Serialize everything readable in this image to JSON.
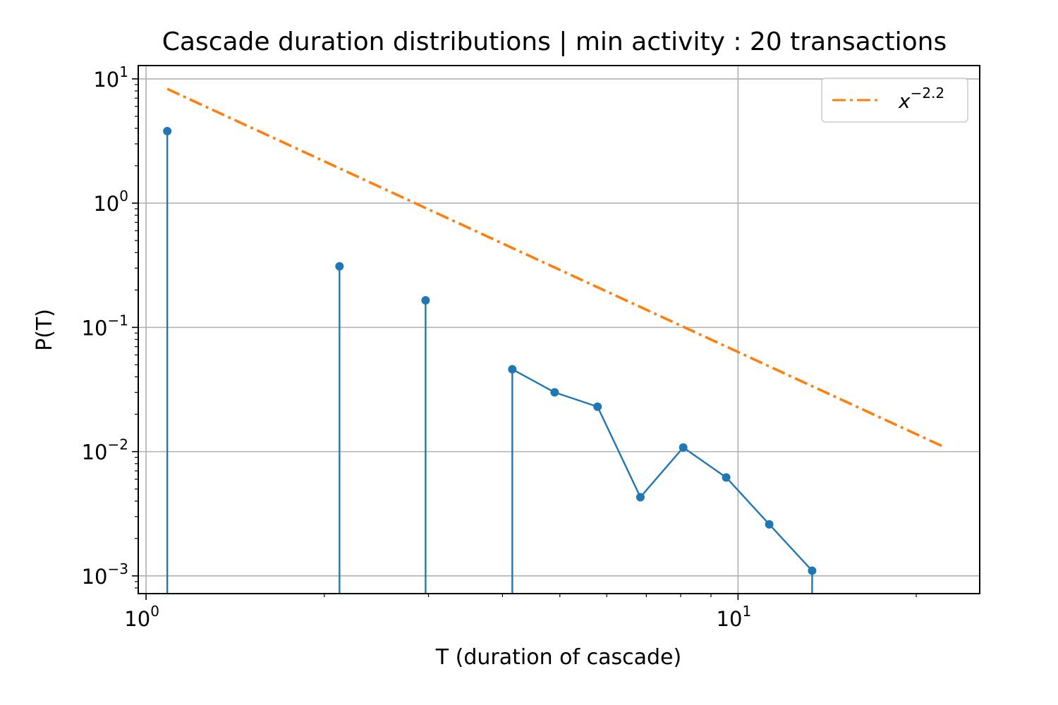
{
  "chart_data": {
    "type": "line",
    "title": "Cascade duration distributions | min activity : 20 transactions",
    "xlabel": "T (duration of cascade)",
    "ylabel": "P(T)",
    "xscale": "log",
    "yscale": "log",
    "xlim": [
      0.97,
      25.6
    ],
    "ylim": [
      0.00072,
      12.8
    ],
    "grid": true,
    "legend_position": "top-right",
    "x_ticks": [
      {
        "value": 1,
        "base": "10",
        "exp": "0"
      },
      {
        "value": 10,
        "base": "10",
        "exp": "1"
      }
    ],
    "y_ticks": [
      {
        "value": 10,
        "base": "10",
        "exp": "1"
      },
      {
        "value": 1,
        "base": "10",
        "exp": "0"
      },
      {
        "value": 0.1,
        "base": "10",
        "exp": "−1"
      },
      {
        "value": 0.01,
        "base": "10",
        "exp": "−2"
      },
      {
        "value": 0.001,
        "base": "10",
        "exp": "−3"
      }
    ],
    "series": [
      {
        "color": "#1f77b4",
        "style": "solid-with-markers",
        "x": [
          1.086,
          2.122,
          2.966,
          4.156,
          4.9,
          5.79,
          6.84,
          8.08,
          9.55,
          11.29,
          13.34
        ],
        "y": [
          3.8,
          0.31,
          0.165,
          0.046,
          0.03,
          0.023,
          0.0043,
          0.0108,
          0.0062,
          0.0026,
          0.0011
        ]
      },
      {
        "name": "x",
        "name_exp": "−2.2",
        "color": "#ff7f0e",
        "style": "dash-dot",
        "x": [
          1.086,
          22.2
        ],
        "y": [
          8.3,
          0.011
        ]
      }
    ]
  }
}
